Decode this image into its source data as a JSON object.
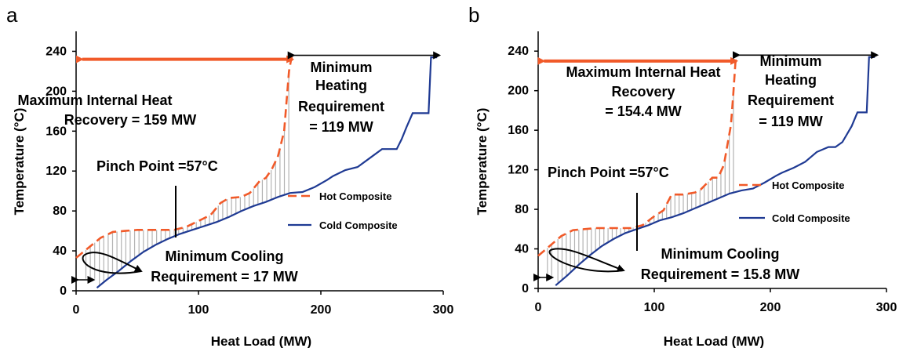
{
  "chart_data": [
    {
      "type": "line",
      "panel_label": "a",
      "xlabel": "Heat Load (MW)",
      "ylabel": "Temperature (°C)",
      "xlim": [
        0,
        300
      ],
      "ylim": [
        0,
        260
      ],
      "xticks": [
        0,
        100,
        200,
        300
      ],
      "yticks": [
        0,
        40,
        80,
        120,
        160,
        200,
        240
      ],
      "grid": false,
      "legend_position": "right",
      "series": [
        {
          "name": "Hot Composite",
          "style": "dashed",
          "color": "#f15a29",
          "x": [
            0,
            5,
            10,
            15,
            20,
            25,
            30,
            40,
            50,
            60,
            70,
            80,
            90,
            100,
            110,
            118,
            125,
            135,
            142,
            150,
            155,
            160,
            165,
            170,
            172,
            174,
            176,
            177
          ],
          "y": [
            33,
            38,
            43,
            48,
            53,
            56,
            59,
            60,
            61,
            61,
            61,
            61,
            64,
            70,
            76,
            88,
            93,
            94,
            98,
            110,
            113,
            122,
            135,
            160,
            190,
            220,
            234,
            238
          ]
        },
        {
          "name": "Cold Composite",
          "style": "solid",
          "color": "#1f3a93",
          "x": [
            17,
            25,
            35,
            45,
            55,
            65,
            75,
            85,
            95,
            105,
            115,
            125,
            135,
            145,
            155,
            165,
            175,
            185,
            195,
            205,
            210,
            220,
            230,
            240,
            250,
            256,
            262,
            266,
            270,
            275,
            285,
            288,
            290,
            295
          ],
          "y": [
            3,
            11,
            20,
            30,
            39,
            46,
            52,
            57,
            61,
            65,
            69,
            74,
            80,
            85,
            89,
            94,
            98,
            99,
            104,
            111,
            115,
            121,
            124,
            133,
            142,
            142,
            142,
            152,
            164,
            178,
            178,
            178,
            234,
            234
          ]
        }
      ],
      "annotations": {
        "recovery": [
          "Maximum Internal Heat",
          "Recovery = 159 MW"
        ],
        "heating": [
          "Minimum",
          "Heating",
          "Requirement",
          "= 119 MW"
        ],
        "pinch": "Pinch Point =57°C",
        "cooling": [
          "Minimum Cooling",
          "Requirement = 17 MW"
        ]
      },
      "arrow_colors": {
        "recovery": "#f15a29",
        "heating": "#000000",
        "cooling": "#000000"
      }
    },
    {
      "type": "line",
      "panel_label": "b",
      "xlabel": "Heat Load (MW)",
      "ylabel": "Temperature (°C)",
      "xlim": [
        0,
        300
      ],
      "ylim": [
        0,
        260
      ],
      "xticks": [
        0,
        100,
        200,
        300
      ],
      "yticks": [
        0,
        40,
        80,
        120,
        160,
        200,
        240
      ],
      "grid": false,
      "legend_position": "right",
      "series": [
        {
          "name": "Hot Composite",
          "style": "dashed",
          "color": "#f15a29",
          "x": [
            0,
            5,
            10,
            15,
            20,
            25,
            30,
            40,
            50,
            60,
            70,
            80,
            90,
            100,
            108,
            115,
            125,
            135,
            140,
            150,
            155,
            160,
            163,
            166,
            168,
            170,
            171
          ],
          "y": [
            33,
            38,
            43,
            48,
            53,
            56,
            59,
            60,
            61,
            61,
            61,
            61,
            64,
            73,
            79,
            95,
            95,
            97,
            100,
            112,
            112,
            125,
            145,
            165,
            195,
            230,
            237
          ]
        },
        {
          "name": "Cold Composite",
          "style": "solid",
          "color": "#1f3a93",
          "x": [
            15,
            25,
            35,
            45,
            55,
            65,
            75,
            85,
            95,
            105,
            115,
            125,
            135,
            145,
            155,
            165,
            175,
            185,
            195,
            205,
            210,
            220,
            230,
            240,
            250,
            256,
            262,
            266,
            270,
            275,
            283,
            285,
            290
          ],
          "y": [
            3,
            13,
            24,
            34,
            43,
            50,
            56,
            60,
            64,
            69,
            72,
            76,
            81,
            86,
            91,
            96,
            99,
            101,
            107,
            114,
            117,
            122,
            128,
            138,
            143,
            143,
            148,
            156,
            164,
            178,
            178,
            234,
            234
          ]
        }
      ],
      "annotations": {
        "recovery": [
          "Maximum Internal Heat",
          "Recovery",
          "= 154.4 MW"
        ],
        "heating": [
          "Minimum",
          "Heating",
          "Requirement",
          "= 119 MW"
        ],
        "pinch": "Pinch Point =57°C",
        "cooling": [
          "Minimum Cooling",
          "Requirement = 15.8 MW"
        ]
      },
      "arrow_colors": {
        "recovery": "#f15a29",
        "heating": "#000000",
        "cooling": "#000000"
      }
    }
  ]
}
